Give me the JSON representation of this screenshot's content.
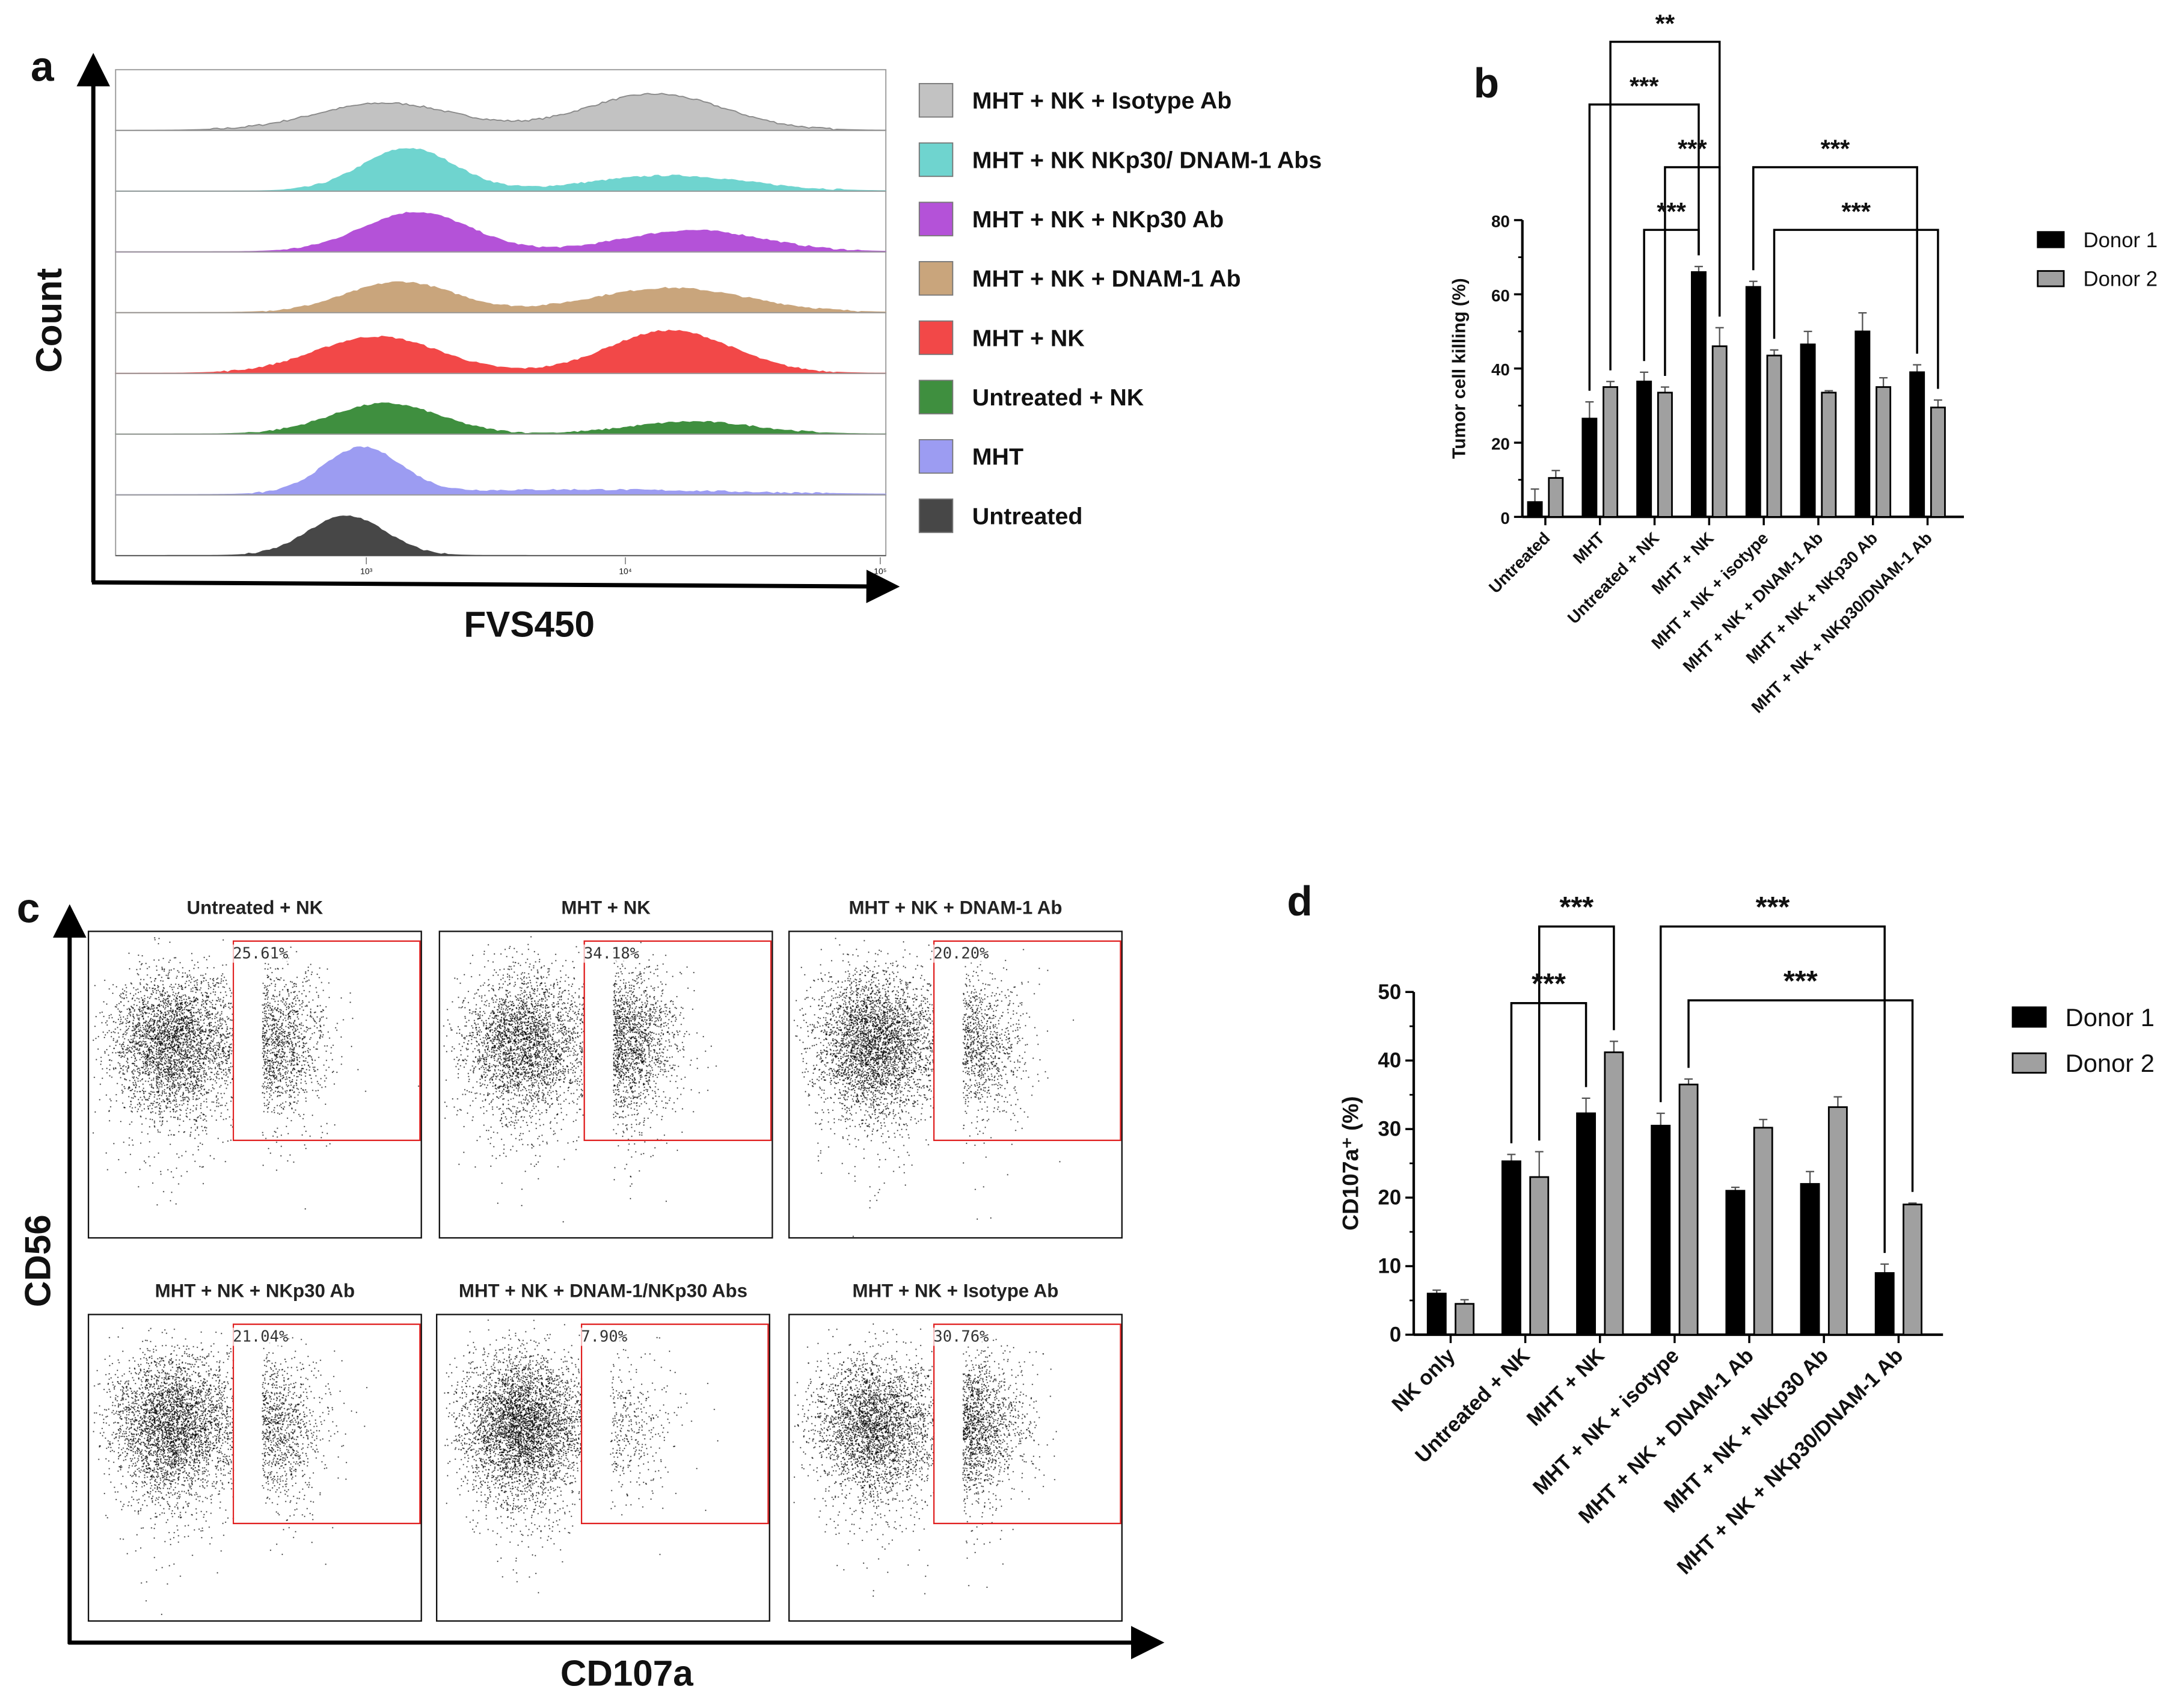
{
  "panels": {
    "a": "a",
    "b": "b",
    "c": "c",
    "d": "d"
  },
  "panel_a": {
    "ylabel": "Count",
    "xlabel": "FVS450",
    "ticks": [
      "10³",
      "10⁴",
      "10⁵"
    ],
    "legend": [
      {
        "label": "MHT + NK + Isotype Ab",
        "color": "#c2c2c2"
      },
      {
        "label": "MHT + NK NKp30/ DNAM-1 Abs",
        "color": "#6fd4cf"
      },
      {
        "label": "MHT + NK + NKp30 Ab",
        "color": "#b452d8"
      },
      {
        "label": "MHT + NK + DNAM-1 Ab",
        "color": "#c9a57c"
      },
      {
        "label": "MHT + NK",
        "color": "#f24848"
      },
      {
        "label": "Untreated + NK",
        "color": "#3f8f3f"
      },
      {
        "label": "MHT",
        "color": "#9c9cf2"
      },
      {
        "label": "Untreated",
        "color": "#474747"
      }
    ]
  },
  "panel_c": {
    "ylabel": "CD56",
    "xlabel": "CD107a",
    "plots": [
      {
        "title": "Untreated + NK",
        "pct": "25.61%",
        "frac": 0.2561
      },
      {
        "title": "MHT + NK",
        "pct": "34.18%",
        "frac": 0.3418
      },
      {
        "title": "MHT + NK + DNAM-1 Ab",
        "pct": "20.20%",
        "frac": 0.202
      },
      {
        "title": "MHT + NK + NKp30 Ab",
        "pct": "21.04%",
        "frac": 0.2104
      },
      {
        "title": "MHT + NK + DNAM-1/NKp30 Abs",
        "pct": "7.90%",
        "frac": 0.079
      },
      {
        "title": "MHT + NK + Isotype Ab",
        "pct": "30.76%",
        "frac": 0.3076
      }
    ]
  },
  "chart_data": [
    {
      "type": "bar",
      "panel": "b",
      "ylabel": "Tumor cell killing (%)",
      "ylim": [
        0,
        80
      ],
      "yticks": [
        "0",
        "20",
        "40",
        "60",
        "80"
      ],
      "categories": [
        "Untreated",
        "MHT",
        "Untreated + NK",
        "MHT + NK",
        "MHT + NK + isotype",
        "MHT + NK + DNAM-1 Ab",
        "MHT + NK + NKp30 Ab",
        "MHT + NK + NKp30/DNAM-1 Ab"
      ],
      "series": [
        {
          "name": "Donor 1",
          "color": "#000000",
          "values": [
            4,
            26.5,
            36.5,
            66,
            62,
            46.5,
            50,
            39
          ],
          "errors": [
            3.5,
            4.5,
            2.5,
            1.5,
            1.5,
            3.5,
            5,
            2
          ]
        },
        {
          "name": "Donor 2",
          "color": "#a0a0a0",
          "values": [
            10.5,
            35,
            33.5,
            46,
            43.5,
            33.5,
            35,
            29.5
          ],
          "errors": [
            2,
            1.5,
            1.5,
            5,
            1.5,
            0.5,
            2.5,
            2
          ]
        }
      ],
      "annotations": [
        {
          "from": [
            1,
            1
          ],
          "to": [
            3,
            1
          ],
          "label": "**"
        },
        {
          "from": [
            1,
            0
          ],
          "to": [
            3,
            0
          ],
          "label": "***"
        },
        {
          "from": [
            2,
            1
          ],
          "to": [
            3,
            1
          ],
          "label": "***"
        },
        {
          "from": [
            2,
            0
          ],
          "to": [
            3,
            0
          ],
          "label": "***"
        },
        {
          "from": [
            4,
            0
          ],
          "to": [
            7,
            0
          ],
          "label": "***"
        },
        {
          "from": [
            4,
            1
          ],
          "to": [
            7,
            1
          ],
          "label": "***"
        }
      ],
      "legend": "right"
    },
    {
      "type": "bar",
      "panel": "d",
      "ylabel": "CD107a⁺ (%)",
      "ylim": [
        0,
        50
      ],
      "yticks": [
        "0",
        "10",
        "20",
        "30",
        "40",
        "50"
      ],
      "categories": [
        "NK only",
        "Untreated + NK",
        "MHT + NK",
        "MHT + NK + isotype",
        "MHT + NK + DNAM-1 Ab",
        "MHT + NK + NKp30 Ab",
        "MHT + NK + NKp30/DNAM-1 Ab"
      ],
      "series": [
        {
          "name": "Donor 1",
          "color": "#000000",
          "values": [
            6,
            25.3,
            32.3,
            30.5,
            21,
            22,
            9
          ],
          "errors": [
            0.5,
            1,
            2.2,
            1.8,
            0.5,
            1.8,
            1.3
          ]
        },
        {
          "name": "Donor 2",
          "color": "#a0a0a0",
          "values": [
            4.5,
            23,
            41.2,
            36.5,
            30.2,
            33.2,
            19
          ],
          "errors": [
            0.6,
            3.7,
            1.6,
            0.8,
            1.2,
            1.5,
            0.2
          ]
        }
      ],
      "annotations": [
        {
          "from": [
            1,
            1
          ],
          "to": [
            2,
            1
          ],
          "label": "***"
        },
        {
          "from": [
            1,
            0
          ],
          "to": [
            2,
            0
          ],
          "label": "***"
        },
        {
          "from": [
            3,
            0
          ],
          "to": [
            6,
            0
          ],
          "label": "***"
        },
        {
          "from": [
            3,
            1
          ],
          "to": [
            6,
            1
          ],
          "label": "***"
        }
      ],
      "legend": "right"
    }
  ]
}
